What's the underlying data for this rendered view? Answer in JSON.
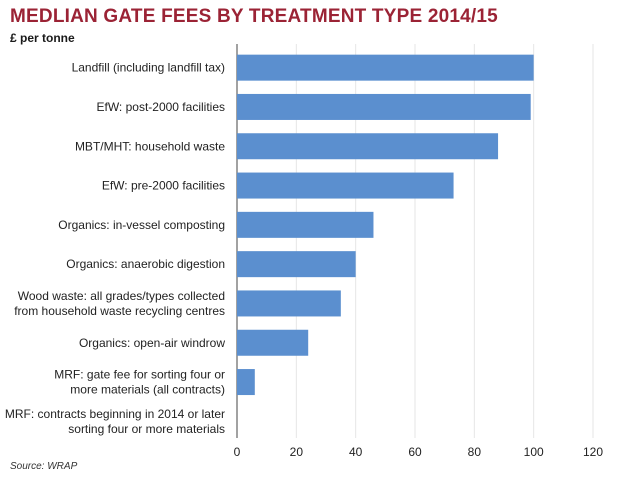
{
  "chart_data": {
    "type": "bar",
    "orientation": "horizontal",
    "title": "MEDLIAN GATE FEES BY TREATMENT TYPE 2014/15",
    "subtitle": "£ per tonne",
    "source": "Source: WRAP",
    "categories": [
      [
        "Landfill (including landfill tax)"
      ],
      [
        "EfW: post-2000 facilities"
      ],
      [
        "MBT/MHT: household waste"
      ],
      [
        "EfW: pre-2000 facilities"
      ],
      [
        "Organics: in-vessel composting"
      ],
      [
        "Organics: anaerobic digestion"
      ],
      [
        "Wood waste: all grades/types collected",
        "from household waste recycling centres"
      ],
      [
        "Organics: open-air windrow"
      ],
      [
        "MRF: gate fee for sorting four or",
        "more materials (all contracts)"
      ],
      [
        "MRF: contracts beginning in 2014 or later",
        "sorting four or more materials"
      ]
    ],
    "values": [
      100,
      99,
      88,
      73,
      46,
      40,
      35,
      24,
      6,
      0
    ],
    "xlim": [
      0,
      120
    ],
    "xticks": [
      "0",
      "20",
      "40",
      "60",
      "80",
      "100",
      "120"
    ],
    "grid": "vertical",
    "bar_color": "#5b8fcf",
    "grid_color": "#e6e6e6",
    "title_color": "#9b2335"
  }
}
